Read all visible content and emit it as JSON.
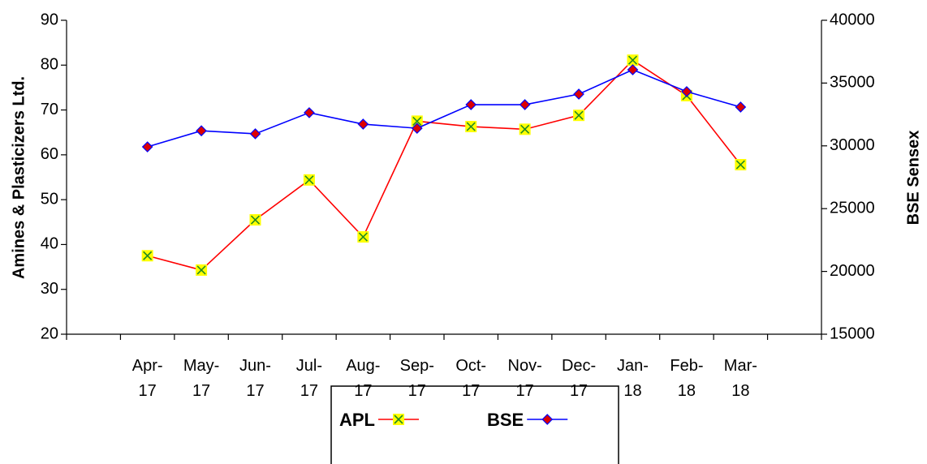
{
  "chart_data": {
    "type": "line",
    "y_label": "Amines & Plasticizers Ltd.",
    "y2_label": "BSE Sensex",
    "categories": [
      "Apr-17",
      "May-17",
      "Jun-17",
      "Jul-17",
      "Aug-17",
      "Sep-17",
      "Oct-17",
      "Nov-17",
      "Dec-17",
      "Jan-18",
      "Feb-18",
      "Mar-18"
    ],
    "series": [
      {
        "name": "APL",
        "color": "#ff0000",
        "marker_color": "#ffff00",
        "marker_edge": "#228b22",
        "marker": "x-square",
        "values": [
          37.5,
          34.3,
          45.5,
          54.4,
          41.7,
          67.5,
          66.3,
          65.7,
          68.8,
          81.1,
          73.2,
          57.8
        ]
      },
      {
        "name": "BSE",
        "color": "#0000ff",
        "marker_color": "#dd0000",
        "marker_edge": "#0000ff",
        "marker": "diamond",
        "axis": "y2",
        "values": [
          29920,
          31200,
          30960,
          32640,
          31730,
          31400,
          33280,
          33280,
          34120,
          36060,
          34320,
          33090
        ]
      }
    ],
    "ylim": [
      20,
      90
    ],
    "yticks": [
      20,
      30,
      40,
      50,
      60,
      70,
      80,
      90
    ],
    "y2lim": [
      15000,
      40000
    ],
    "y2ticks": [
      15000,
      20000,
      25000,
      30000,
      35000,
      40000
    ],
    "grid": false
  }
}
